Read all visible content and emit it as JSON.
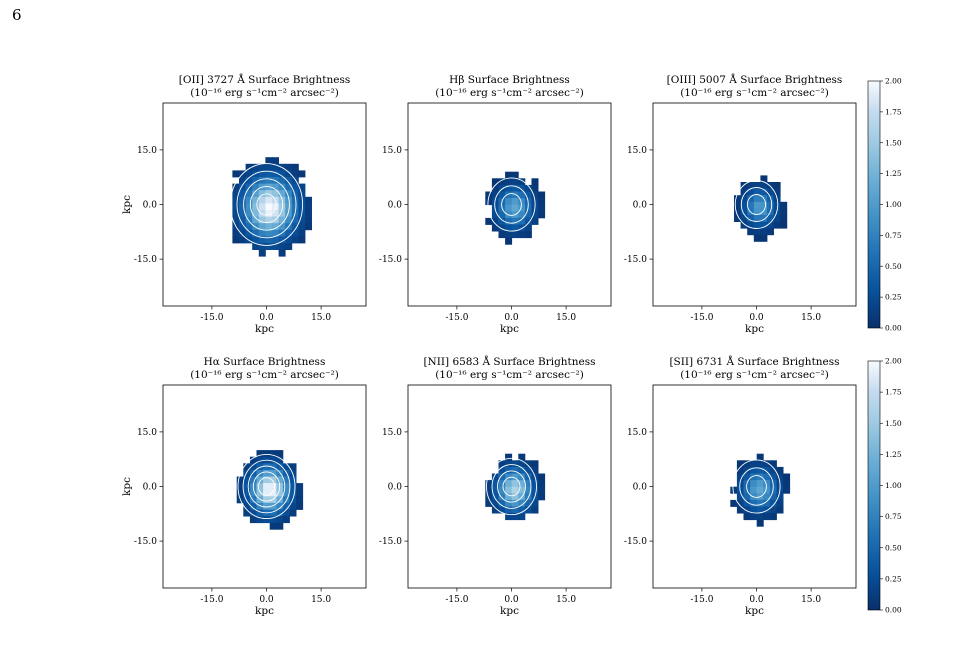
{
  "page": {
    "number": "6"
  },
  "figure": {
    "subtitle": "(10⁻¹⁶ erg s⁻¹cm⁻² arcsec⁻²)",
    "xlabel": "kpc",
    "ylabel": "kpc",
    "tick_labels": [
      "-15.0",
      "0.0",
      "15.0"
    ],
    "colorbar": {
      "tick_labels": [
        "0.00",
        "0.25",
        "0.50",
        "0.75",
        "1.00",
        "1.25",
        "1.50",
        "1.75",
        "2.00"
      ],
      "range": [
        0,
        2
      ],
      "colormap": "Blues_r",
      "dark": "#08306b",
      "light": "#f7fbff"
    },
    "panels": [
      {
        "title": "[OII] 3727 Å Surface Brightness",
        "show_ylabel": true,
        "radius_kpc": 13,
        "peak": 2.0,
        "contours": 5
      },
      {
        "title": "Hβ Surface Brightness",
        "show_ylabel": false,
        "radius_kpc": 9,
        "peak": 1.1,
        "contours": 3
      },
      {
        "title": "[OIII] 5007 Å Surface Brightness",
        "show_ylabel": false,
        "radius_kpc": 8,
        "peak": 1.0,
        "contours": 3
      },
      {
        "title": "Hα Surface Brightness",
        "show_ylabel": true,
        "radius_kpc": 10,
        "peak": 2.0,
        "contours": 5
      },
      {
        "title": "[NII] 6583 Å Surface Brightness",
        "show_ylabel": false,
        "radius_kpc": 9,
        "peak": 1.6,
        "contours": 4
      },
      {
        "title": "[SII] 6731 Å Surface Brightness",
        "show_ylabel": false,
        "radius_kpc": 9,
        "peak": 1.1,
        "contours": 3
      }
    ]
  }
}
